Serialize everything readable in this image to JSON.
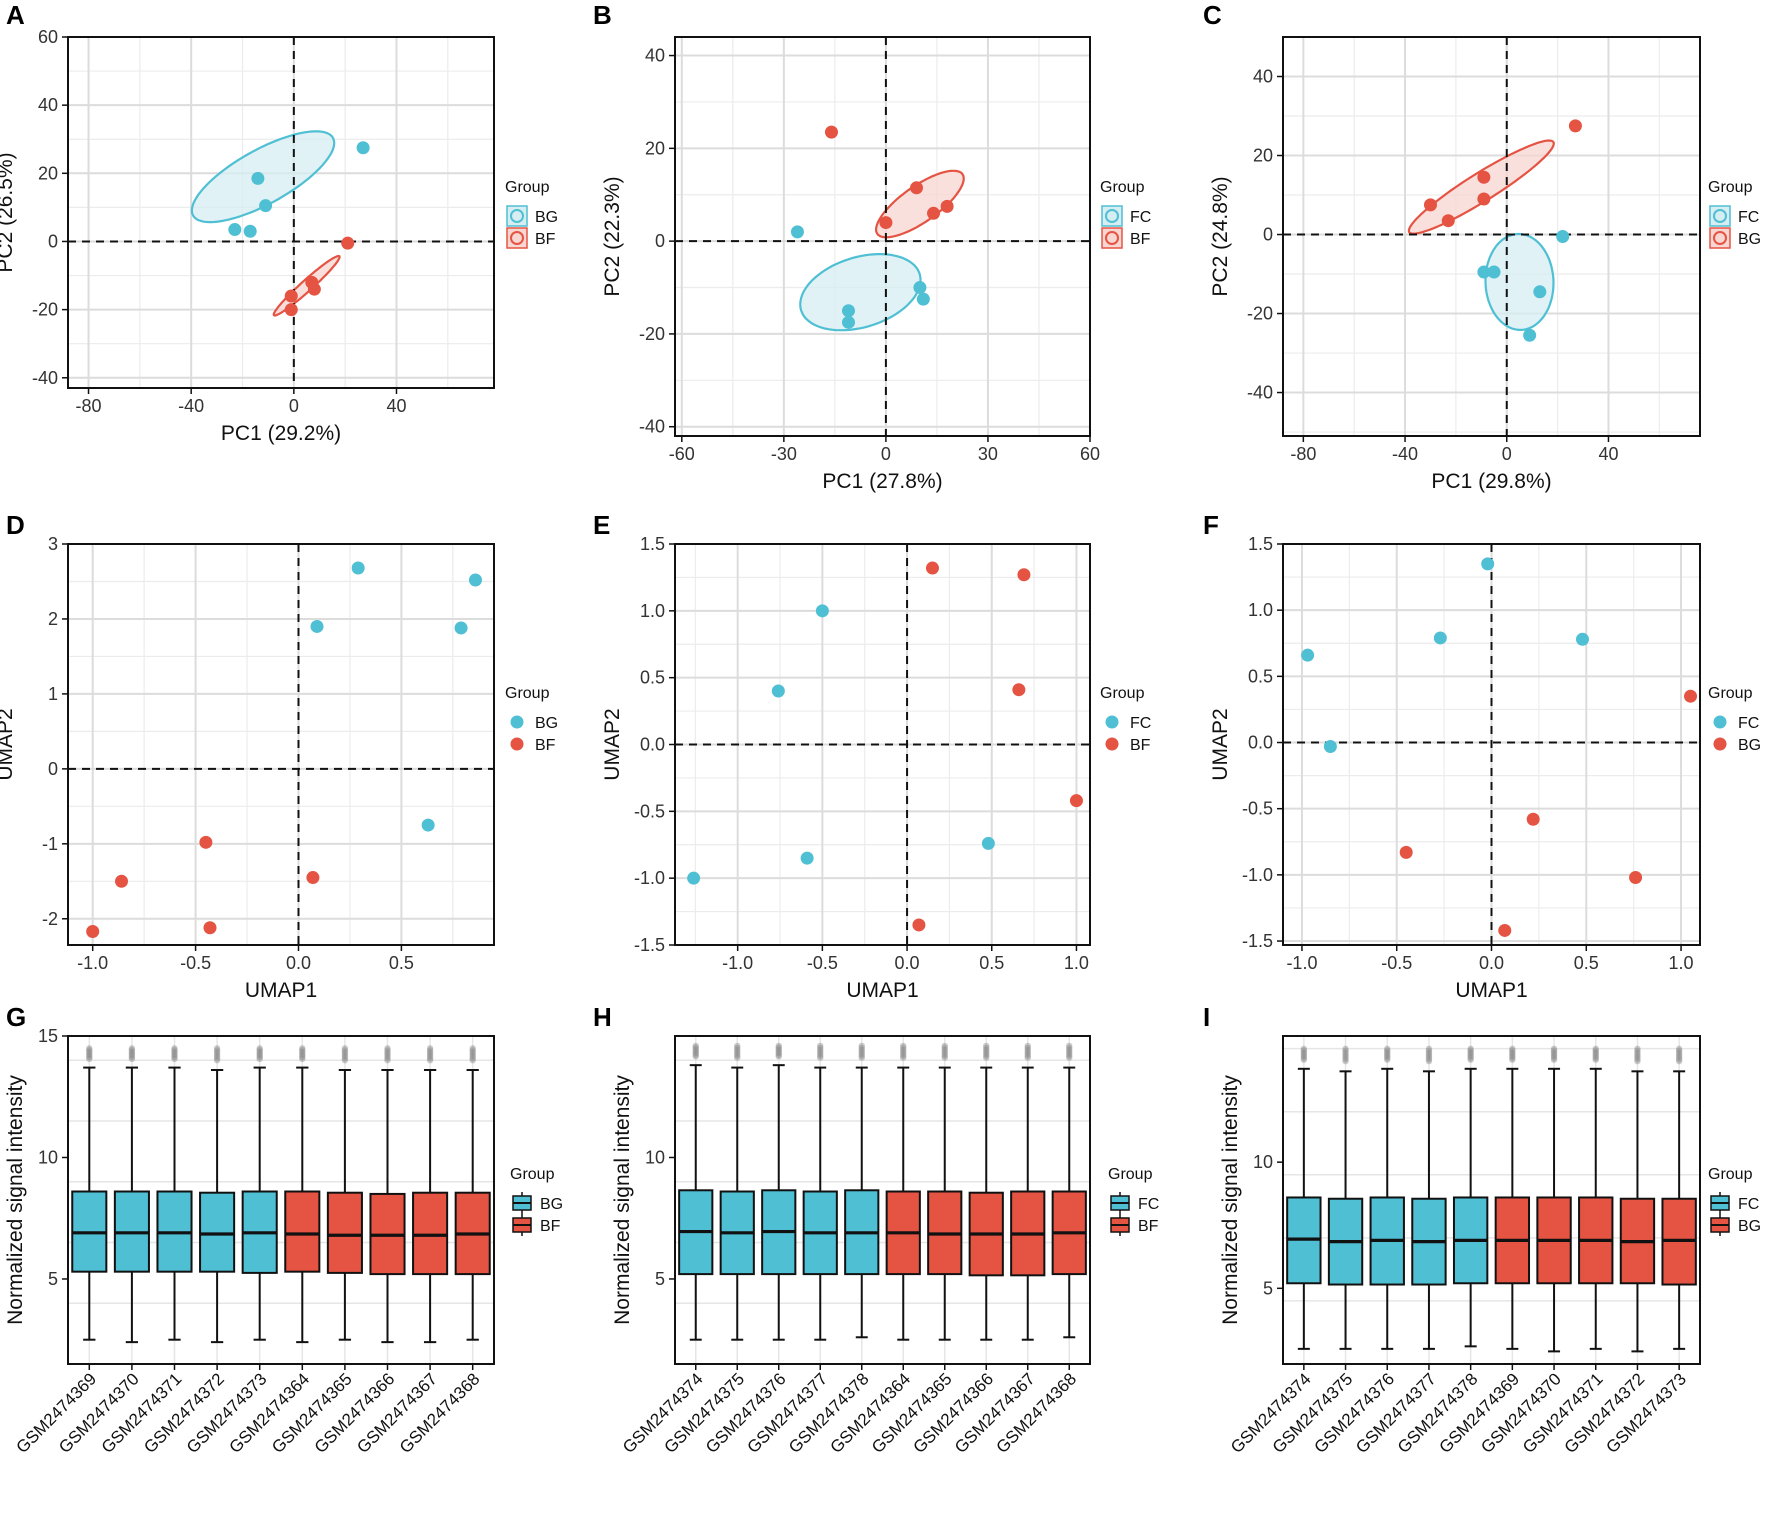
{
  "colors": {
    "blue": "#4fbfd4",
    "red": "#e55343",
    "blue_fill": "#d6eef2",
    "red_fill": "#f8d6d2"
  },
  "chart_data": [
    {
      "id": "A",
      "type": "scatter",
      "label": "A",
      "xlabel": "PC1 (29.2%)",
      "ylabel": "PC2 (26.5%)",
      "xlim": [
        -88,
        78
      ],
      "ylim": [
        -43,
        60
      ],
      "xticks": [
        -80,
        -40,
        0,
        40
      ],
      "yticks": [
        -40,
        -20,
        0,
        20,
        40,
        60
      ],
      "legend": {
        "title": "Group",
        "position": "right",
        "style": "ring"
      },
      "series": [
        {
          "name": "BG",
          "color": "blue",
          "points": [
            [
              -23,
              3.5
            ],
            [
              -17,
              3
            ],
            [
              -14,
              18.5
            ],
            [
              -11,
              10.5
            ],
            [
              27,
              27.5
            ]
          ],
          "ellipse": {
            "cx": -12,
            "cy": 19,
            "rx": 80,
            "ry": 27,
            "angle": 29
          }
        },
        {
          "name": "BF",
          "color": "red",
          "points": [
            [
              -1,
              -16
            ],
            [
              -1,
              -20
            ],
            [
              7,
              -12
            ],
            [
              8,
              -14
            ],
            [
              21,
              -0.5
            ]
          ],
          "ellipse": {
            "cx": 5,
            "cy": -13,
            "rx": 44,
            "ry": 5.5,
            "angle": 42
          }
        }
      ]
    },
    {
      "id": "B",
      "type": "scatter",
      "label": "B",
      "xlabel": "PC1 (27.8%)",
      "ylabel": "PC2 (22.3%)",
      "xlim": [
        -62,
        60
      ],
      "ylim": [
        -42,
        44
      ],
      "xticks": [
        -60,
        -30,
        0,
        30,
        60
      ],
      "yticks": [
        -40,
        -20,
        0,
        20,
        40
      ],
      "legend": {
        "title": "Group",
        "position": "right",
        "style": "ring"
      },
      "series": [
        {
          "name": "FC",
          "color": "blue",
          "points": [
            [
              -26,
              2
            ],
            [
              -11,
              -15
            ],
            [
              -11,
              -17.5
            ],
            [
              10,
              -10
            ],
            [
              11,
              -12.5
            ]
          ],
          "ellipse": {
            "cx": -7.5,
            "cy": -11,
            "rx": 62,
            "ry": 35,
            "angle": 17
          }
        },
        {
          "name": "BF",
          "color": "red",
          "points": [
            [
              -16,
              23.5
            ],
            [
              0,
              4
            ],
            [
              9,
              11.5
            ],
            [
              14,
              6
            ],
            [
              18,
              7.5
            ]
          ],
          "ellipse": {
            "cx": 10,
            "cy": 8,
            "rx": 52,
            "ry": 18,
            "angle": 35
          }
        }
      ]
    },
    {
      "id": "C",
      "type": "scatter",
      "label": "C",
      "xlabel": "PC1 (29.8%)",
      "ylabel": "PC2 (24.8%)",
      "xlim": [
        -88,
        76
      ],
      "ylim": [
        -51,
        50
      ],
      "xticks": [
        -80,
        -40,
        0,
        40
      ],
      "yticks": [
        -40,
        -20,
        0,
        20,
        40
      ],
      "legend": {
        "title": "Group",
        "position": "right",
        "style": "ring"
      },
      "series": [
        {
          "name": "FC",
          "color": "blue",
          "points": [
            [
              -9,
              -9.5
            ],
            [
              -5,
              -9.5
            ],
            [
              9,
              -25.5
            ],
            [
              13,
              -14.5
            ],
            [
              22,
              -0.5
            ]
          ],
          "ellipse": {
            "cx": 5,
            "cy": -12,
            "rx": 48,
            "ry": 34,
            "angle": 92
          }
        },
        {
          "name": "BG",
          "color": "red",
          "points": [
            [
              -30,
              7.5
            ],
            [
              -23,
              3.5
            ],
            [
              -9,
              9
            ],
            [
              -9,
              14.5
            ],
            [
              27,
              27.5
            ]
          ],
          "ellipse": {
            "cx": -10,
            "cy": 12,
            "rx": 85,
            "ry": 14,
            "angle": 32
          }
        }
      ]
    },
    {
      "id": "D",
      "type": "scatter",
      "label": "D",
      "xlabel": "UMAP1",
      "ylabel": "UMAP2",
      "xlim": [
        -1.12,
        0.95
      ],
      "ylim": [
        -2.35,
        3.0
      ],
      "xticks": [
        -1.0,
        -0.5,
        0.0,
        0.5
      ],
      "yticks": [
        -2,
        -1,
        0,
        1,
        2,
        3
      ],
      "legend": {
        "title": "Group",
        "position": "right",
        "style": "dot"
      },
      "series": [
        {
          "name": "BG",
          "color": "blue",
          "points": [
            [
              0.09,
              1.9
            ],
            [
              0.29,
              2.68
            ],
            [
              0.63,
              -0.75
            ],
            [
              0.79,
              1.88
            ],
            [
              0.86,
              2.52
            ]
          ]
        },
        {
          "name": "BF",
          "color": "red",
          "points": [
            [
              -1.0,
              -2.17
            ],
            [
              -0.86,
              -1.5
            ],
            [
              -0.45,
              -0.98
            ],
            [
              -0.43,
              -2.12
            ],
            [
              0.07,
              -1.45
            ]
          ]
        }
      ]
    },
    {
      "id": "E",
      "type": "scatter",
      "label": "E",
      "xlabel": "UMAP1",
      "ylabel": "UMAP2",
      "xlim": [
        -1.37,
        1.08
      ],
      "ylim": [
        -1.5,
        1.5
      ],
      "xticks": [
        -1.0,
        -0.5,
        0.0,
        0.5,
        1.0
      ],
      "yticks": [
        -1.5,
        -1.0,
        -0.5,
        0.0,
        0.5,
        1.0,
        1.5
      ],
      "legend": {
        "title": "Group",
        "position": "right",
        "style": "dot"
      },
      "series": [
        {
          "name": "FC",
          "color": "blue",
          "points": [
            [
              -1.26,
              -1.0
            ],
            [
              -0.76,
              0.4
            ],
            [
              -0.59,
              -0.85
            ],
            [
              -0.5,
              1.0
            ],
            [
              0.48,
              -0.74
            ]
          ]
        },
        {
          "name": "BF",
          "color": "red",
          "points": [
            [
              0.07,
              -1.35
            ],
            [
              0.15,
              1.32
            ],
            [
              0.66,
              0.41
            ],
            [
              0.69,
              1.27
            ],
            [
              1.0,
              -0.42
            ]
          ]
        }
      ]
    },
    {
      "id": "F",
      "type": "scatter",
      "label": "F",
      "xlabel": "UMAP1",
      "ylabel": "UMAP2",
      "xlim": [
        -1.1,
        1.1
      ],
      "ylim": [
        -1.53,
        1.5
      ],
      "xticks": [
        -1.0,
        -0.5,
        0.0,
        0.5,
        1.0
      ],
      "yticks": [
        -1.5,
        -1.0,
        -0.5,
        0.0,
        0.5,
        1.0,
        1.5
      ],
      "legend": {
        "title": "Group",
        "position": "right",
        "style": "dot"
      },
      "series": [
        {
          "name": "FC",
          "color": "blue",
          "points": [
            [
              -0.97,
              0.66
            ],
            [
              -0.85,
              -0.03
            ],
            [
              -0.27,
              0.79
            ],
            [
              -0.02,
              1.35
            ],
            [
              0.48,
              0.78
            ]
          ]
        },
        {
          "name": "BG",
          "color": "red",
          "points": [
            [
              -0.45,
              -0.83
            ],
            [
              0.07,
              -1.42
            ],
            [
              0.22,
              -0.58
            ],
            [
              0.76,
              -1.02
            ],
            [
              1.05,
              0.35
            ]
          ]
        }
      ]
    },
    {
      "id": "G",
      "type": "box",
      "label": "G",
      "ylabel": "Normalized signal intensity",
      "ylim": [
        1.5,
        15
      ],
      "yticks": [
        5,
        10,
        15
      ],
      "legend": {
        "title": "Group",
        "position": "right",
        "style": "box"
      },
      "groups": [
        {
          "name": "BG",
          "color": "blue"
        },
        {
          "name": "BF",
          "color": "red"
        }
      ],
      "boxes": [
        {
          "sample": "GSM2474369",
          "group": 0,
          "whisker_low": 2.5,
          "q1": 5.3,
          "median": 6.9,
          "q3": 8.6,
          "whisker_high": 13.7,
          "outlier_max": 14.5
        },
        {
          "sample": "GSM2474370",
          "group": 0,
          "whisker_low": 2.4,
          "q1": 5.3,
          "median": 6.9,
          "q3": 8.6,
          "whisker_high": 13.7,
          "outlier_max": 14.5
        },
        {
          "sample": "GSM2474371",
          "group": 0,
          "whisker_low": 2.5,
          "q1": 5.3,
          "median": 6.9,
          "q3": 8.6,
          "whisker_high": 13.7,
          "outlier_max": 14.5
        },
        {
          "sample": "GSM2474372",
          "group": 0,
          "whisker_low": 2.4,
          "q1": 5.3,
          "median": 6.85,
          "q3": 8.55,
          "whisker_high": 13.6,
          "outlier_max": 14.5
        },
        {
          "sample": "GSM2474373",
          "group": 0,
          "whisker_low": 2.5,
          "q1": 5.25,
          "median": 6.9,
          "q3": 8.6,
          "whisker_high": 13.7,
          "outlier_max": 14.5
        },
        {
          "sample": "GSM2474364",
          "group": 1,
          "whisker_low": 2.4,
          "q1": 5.3,
          "median": 6.85,
          "q3": 8.6,
          "whisker_high": 13.7,
          "outlier_max": 14.5
        },
        {
          "sample": "GSM2474365",
          "group": 1,
          "whisker_low": 2.5,
          "q1": 5.25,
          "median": 6.8,
          "q3": 8.55,
          "whisker_high": 13.6,
          "outlier_max": 14.5
        },
        {
          "sample": "GSM2474366",
          "group": 1,
          "whisker_low": 2.4,
          "q1": 5.2,
          "median": 6.8,
          "q3": 8.5,
          "whisker_high": 13.6,
          "outlier_max": 14.5
        },
        {
          "sample": "GSM2474367",
          "group": 1,
          "whisker_low": 2.4,
          "q1": 5.2,
          "median": 6.8,
          "q3": 8.55,
          "whisker_high": 13.6,
          "outlier_max": 14.5
        },
        {
          "sample": "GSM2474368",
          "group": 1,
          "whisker_low": 2.5,
          "q1": 5.2,
          "median": 6.85,
          "q3": 8.55,
          "whisker_high": 13.6,
          "outlier_max": 14.5
        }
      ]
    },
    {
      "id": "H",
      "type": "box",
      "label": "H",
      "ylabel": "Normalized signal intensity",
      "ylim": [
        1.5,
        15
      ],
      "yticks": [
        5,
        10
      ],
      "legend": {
        "title": "Group",
        "position": "right",
        "style": "box"
      },
      "groups": [
        {
          "name": "FC",
          "color": "blue"
        },
        {
          "name": "BF",
          "color": "red"
        }
      ],
      "boxes": [
        {
          "sample": "GSM2474374",
          "group": 0,
          "whisker_low": 2.5,
          "q1": 5.2,
          "median": 6.95,
          "q3": 8.65,
          "whisker_high": 13.8,
          "outlier_max": 14.6
        },
        {
          "sample": "GSM2474375",
          "group": 0,
          "whisker_low": 2.5,
          "q1": 5.2,
          "median": 6.9,
          "q3": 8.6,
          "whisker_high": 13.7,
          "outlier_max": 14.6
        },
        {
          "sample": "GSM2474376",
          "group": 0,
          "whisker_low": 2.5,
          "q1": 5.2,
          "median": 6.95,
          "q3": 8.65,
          "whisker_high": 13.8,
          "outlier_max": 14.6
        },
        {
          "sample": "GSM2474377",
          "group": 0,
          "whisker_low": 2.5,
          "q1": 5.2,
          "median": 6.9,
          "q3": 8.6,
          "whisker_high": 13.7,
          "outlier_max": 14.6
        },
        {
          "sample": "GSM2474378",
          "group": 0,
          "whisker_low": 2.6,
          "q1": 5.2,
          "median": 6.9,
          "q3": 8.65,
          "whisker_high": 13.7,
          "outlier_max": 14.6
        },
        {
          "sample": "GSM2474364",
          "group": 1,
          "whisker_low": 2.5,
          "q1": 5.2,
          "median": 6.9,
          "q3": 8.6,
          "whisker_high": 13.7,
          "outlier_max": 14.6
        },
        {
          "sample": "GSM2474365",
          "group": 1,
          "whisker_low": 2.5,
          "q1": 5.2,
          "median": 6.85,
          "q3": 8.6,
          "whisker_high": 13.7,
          "outlier_max": 14.6
        },
        {
          "sample": "GSM2474366",
          "group": 1,
          "whisker_low": 2.5,
          "q1": 5.15,
          "median": 6.85,
          "q3": 8.55,
          "whisker_high": 13.7,
          "outlier_max": 14.6
        },
        {
          "sample": "GSM2474367",
          "group": 1,
          "whisker_low": 2.5,
          "q1": 5.15,
          "median": 6.85,
          "q3": 8.6,
          "whisker_high": 13.7,
          "outlier_max": 14.6
        },
        {
          "sample": "GSM2474368",
          "group": 1,
          "whisker_low": 2.6,
          "q1": 5.2,
          "median": 6.9,
          "q3": 8.6,
          "whisker_high": 13.7,
          "outlier_max": 14.6
        }
      ]
    },
    {
      "id": "I",
      "type": "box",
      "label": "I",
      "ylabel": "Normalized signal intensity",
      "ylim": [
        2,
        15
      ],
      "yticks": [
        5,
        10
      ],
      "legend": {
        "title": "Group",
        "position": "right",
        "style": "box"
      },
      "groups": [
        {
          "name": "FC",
          "color": "blue"
        },
        {
          "name": "BG",
          "color": "red"
        }
      ],
      "boxes": [
        {
          "sample": "GSM2474374",
          "group": 0,
          "whisker_low": 2.6,
          "q1": 5.2,
          "median": 6.95,
          "q3": 8.6,
          "whisker_high": 13.7,
          "outlier_max": 14.5
        },
        {
          "sample": "GSM2474375",
          "group": 0,
          "whisker_low": 2.6,
          "q1": 5.15,
          "median": 6.85,
          "q3": 8.55,
          "whisker_high": 13.6,
          "outlier_max": 14.5
        },
        {
          "sample": "GSM2474376",
          "group": 0,
          "whisker_low": 2.6,
          "q1": 5.15,
          "median": 6.9,
          "q3": 8.6,
          "whisker_high": 13.7,
          "outlier_max": 14.5
        },
        {
          "sample": "GSM2474377",
          "group": 0,
          "whisker_low": 2.6,
          "q1": 5.15,
          "median": 6.85,
          "q3": 8.55,
          "whisker_high": 13.6,
          "outlier_max": 14.5
        },
        {
          "sample": "GSM2474378",
          "group": 0,
          "whisker_low": 2.7,
          "q1": 5.2,
          "median": 6.9,
          "q3": 8.6,
          "whisker_high": 13.7,
          "outlier_max": 14.5
        },
        {
          "sample": "GSM2474369",
          "group": 1,
          "whisker_low": 2.6,
          "q1": 5.2,
          "median": 6.9,
          "q3": 8.6,
          "whisker_high": 13.7,
          "outlier_max": 14.5
        },
        {
          "sample": "GSM2474370",
          "group": 1,
          "whisker_low": 2.5,
          "q1": 5.2,
          "median": 6.9,
          "q3": 8.6,
          "whisker_high": 13.7,
          "outlier_max": 14.5
        },
        {
          "sample": "GSM2474371",
          "group": 1,
          "whisker_low": 2.6,
          "q1": 5.2,
          "median": 6.9,
          "q3": 8.6,
          "whisker_high": 13.7,
          "outlier_max": 14.5
        },
        {
          "sample": "GSM2474372",
          "group": 1,
          "whisker_low": 2.5,
          "q1": 5.2,
          "median": 6.85,
          "q3": 8.55,
          "whisker_high": 13.6,
          "outlier_max": 14.5
        },
        {
          "sample": "GSM2474373",
          "group": 1,
          "whisker_low": 2.6,
          "q1": 5.15,
          "median": 6.9,
          "q3": 8.55,
          "whisker_high": 13.6,
          "outlier_max": 14.5
        }
      ]
    }
  ]
}
